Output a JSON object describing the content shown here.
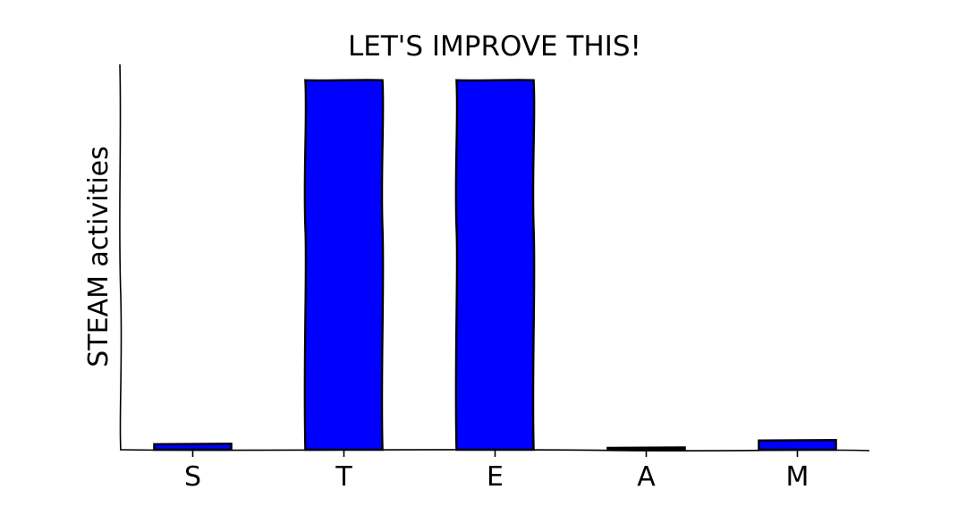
{
  "chart_data": {
    "type": "bar",
    "title": "LET'S IMPROVE THIS!",
    "xlabel": "",
    "ylabel": "STEAM activities",
    "categories": [
      "S",
      "T",
      "E",
      "A",
      "M"
    ],
    "values": [
      1.5,
      100,
      100,
      0.5,
      2.5
    ],
    "ylim": [
      0,
      105
    ],
    "grid": false,
    "bar_color": "#0000ff",
    "show_yticks": false
  }
}
